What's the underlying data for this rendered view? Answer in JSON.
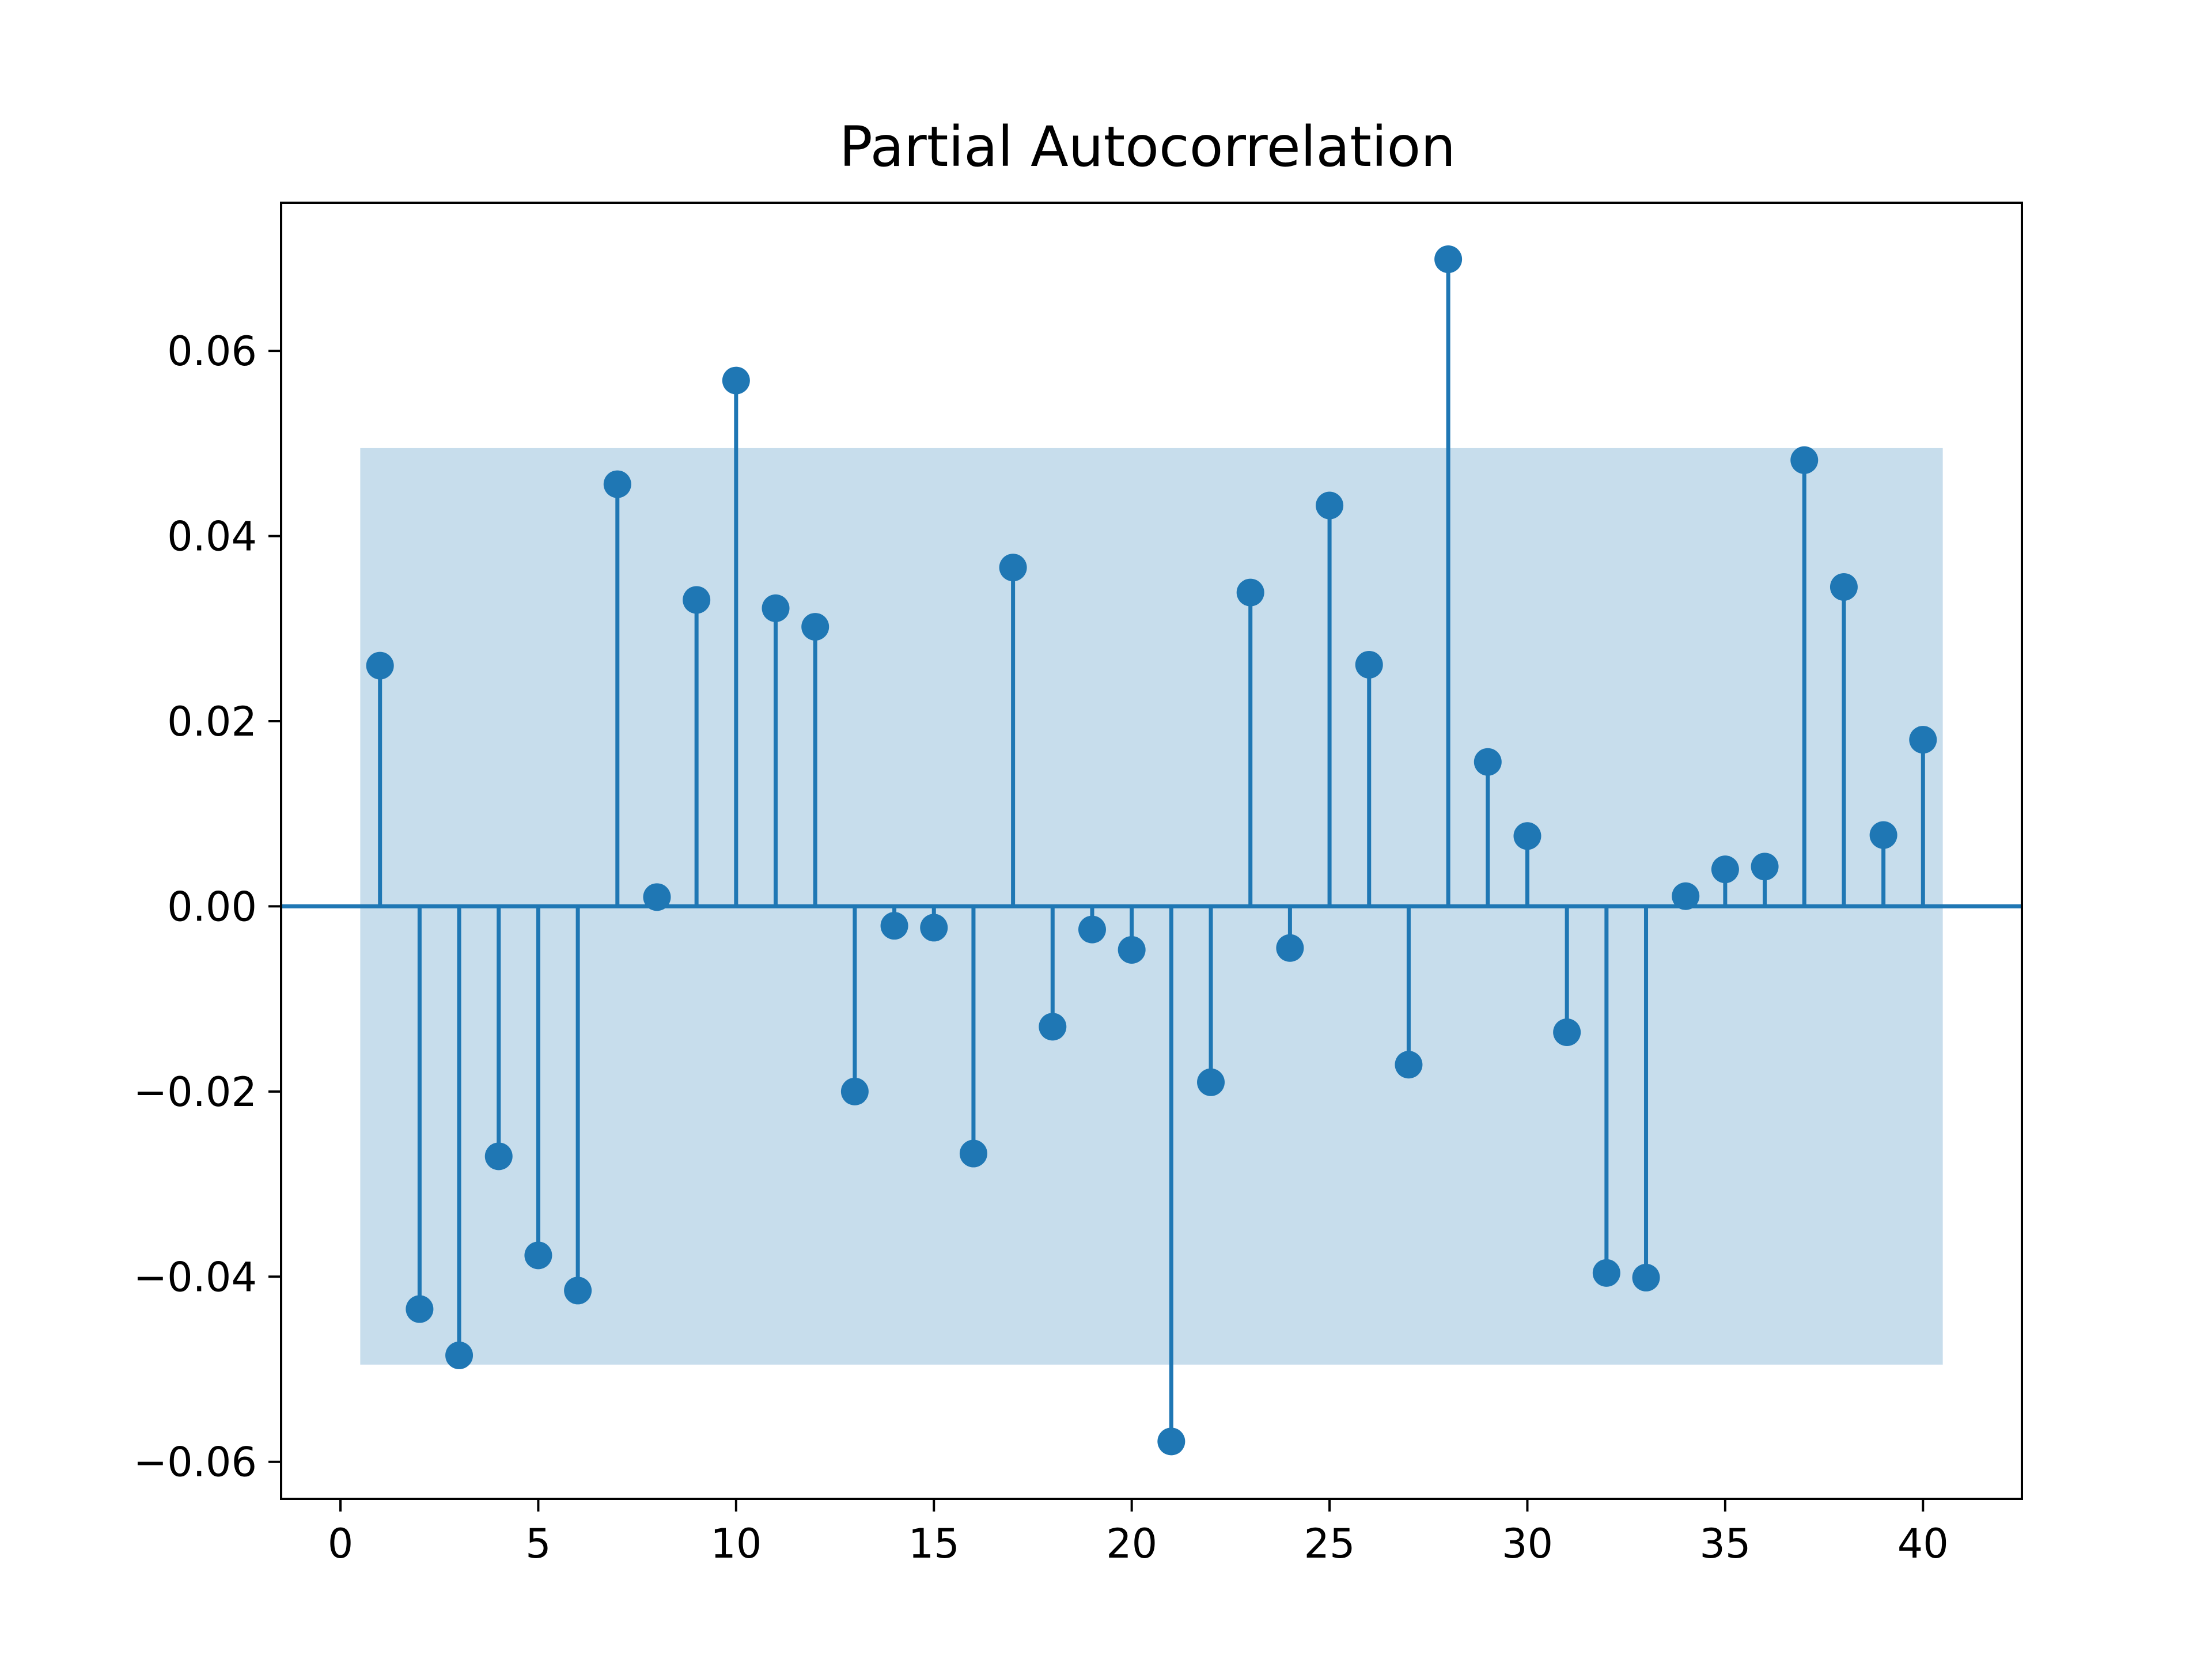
{
  "chart_data": {
    "type": "stem",
    "title": "Partial Autocorrelation",
    "xlabel": "",
    "ylabel": "",
    "xlim": [
      -1.5,
      42.5
    ],
    "ylim": [
      -0.064,
      0.076
    ],
    "x_ticks": [
      0,
      5,
      10,
      15,
      20,
      25,
      30,
      35,
      40
    ],
    "y_ticks": [
      -0.06,
      -0.04,
      -0.02,
      0.0,
      0.02,
      0.04,
      0.06
    ],
    "x_tick_labels": [
      "0",
      "5",
      "10",
      "15",
      "20",
      "25",
      "30",
      "35",
      "40"
    ],
    "y_tick_labels": [
      "−0.06",
      "−0.04",
      "−0.02",
      "0.00",
      "0.02",
      "0.04",
      "0.06"
    ],
    "grid": false,
    "confidence_band": {
      "x_range": [
        0.5,
        40.5
      ],
      "lower": -0.0495,
      "upper": 0.0495
    },
    "colors": {
      "stem": "#1f77b4",
      "band": "#1f77b4",
      "band_opacity": 0.25
    },
    "series": [
      {
        "x": [
          1,
          2,
          3,
          4,
          5,
          6,
          7,
          8,
          9,
          10,
          11,
          12,
          13,
          14,
          15,
          16,
          17,
          18,
          19,
          20,
          21,
          22,
          23,
          24,
          25,
          26,
          27,
          28,
          29,
          30,
          31,
          32,
          33,
          34,
          35,
          36,
          37,
          38,
          39,
          40
        ],
        "values": [
          0.026,
          -0.0435,
          -0.0485,
          -0.027,
          -0.0377,
          -0.0415,
          0.0456,
          0.001,
          0.0331,
          0.0568,
          0.0322,
          0.0302,
          -0.02,
          -0.0021,
          -0.0023,
          -0.0267,
          0.0366,
          -0.013,
          -0.0025,
          -0.0047,
          -0.0578,
          -0.019,
          0.0339,
          -0.0045,
          0.0433,
          0.0261,
          -0.0171,
          0.0699,
          0.0156,
          0.0076,
          -0.0136,
          -0.0396,
          -0.0401,
          0.0011,
          0.004,
          0.0043,
          0.0482,
          0.0345,
          0.0077,
          0.018
        ]
      }
    ]
  }
}
